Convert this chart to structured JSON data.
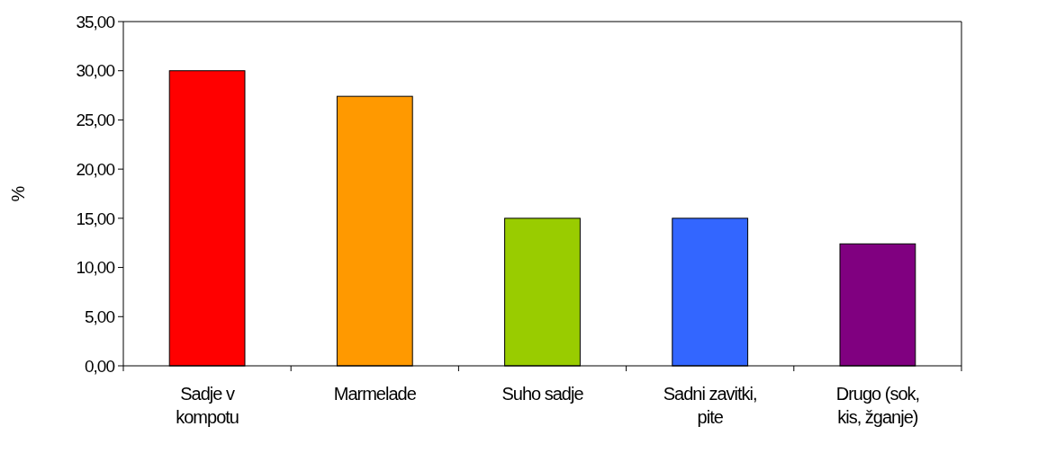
{
  "chart_data": {
    "type": "bar",
    "ylabel": "%",
    "categories": [
      "Sadje v kompotu",
      "Marmelade",
      "Suho sadje",
      "Sadni zavitki, pite",
      "Drugo (sok, kis, žganje)"
    ],
    "values": [
      30.0,
      27.4,
      15.0,
      15.0,
      12.4
    ],
    "colors": [
      "#ff0000",
      "#ff9900",
      "#99cc00",
      "#3366ff",
      "#800080"
    ],
    "ylim": [
      0,
      35
    ],
    "yticks": [
      {
        "value": 0,
        "label": "0,00"
      },
      {
        "value": 5,
        "label": "5,00"
      },
      {
        "value": 10,
        "label": "10,00"
      },
      {
        "value": 15,
        "label": "15,00"
      },
      {
        "value": 20,
        "label": "20,00"
      },
      {
        "value": 25,
        "label": "25,00"
      },
      {
        "value": 30,
        "label": "30,00"
      },
      {
        "value": 35,
        "label": "35,00"
      }
    ],
    "grid": false
  }
}
